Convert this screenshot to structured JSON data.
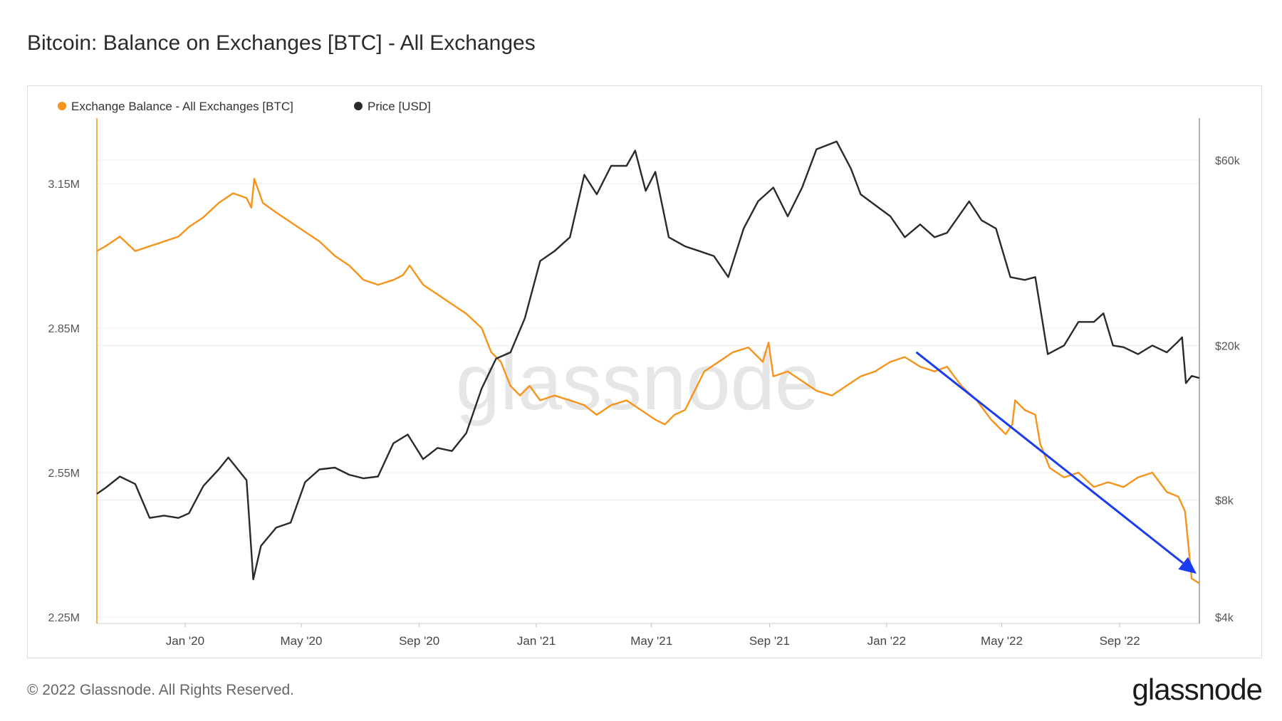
{
  "header": {
    "title": "Bitcoin: Balance on Exchanges [BTC] - All Exchanges"
  },
  "footer": {
    "copyright": "© 2022 Glassnode. All Rights Reserved.",
    "brand": "glassnode",
    "watermark": "glassnode"
  },
  "colors": {
    "balance": "#f7931a",
    "price": "#2a2a2a",
    "arrow": "#1a3cf0",
    "grid": "#ececec"
  },
  "chart_data": {
    "type": "line",
    "title": "Bitcoin: Balance on Exchanges [BTC] - All Exchanges",
    "legend_position": "top-left",
    "grid": true,
    "x_ticks": [
      "Jan '20",
      "May '20",
      "Sep '20",
      "Jan '21",
      "May '21",
      "Sep '21",
      "Jan '22",
      "May '22",
      "Sep '22"
    ],
    "x_range": [
      "2019-10-01",
      "2022-11-23"
    ],
    "y_left": {
      "ticks": [
        "2.25M",
        "2.55M",
        "2.85M",
        "3.15M"
      ],
      "range": [
        2250000,
        3150000
      ]
    },
    "y_right": {
      "scale": "log",
      "ticks": [
        "$4k",
        "$8k",
        "$20k",
        "$60k"
      ],
      "tick_values": [
        4000,
        8000,
        20000,
        60000
      ]
    },
    "series": [
      {
        "name": "Exchange Balance - All Exchanges [BTC]",
        "axis": "left",
        "color": "#f7931a",
        "points": [
          [
            "2019-10-01",
            3010000
          ],
          [
            "2019-10-10",
            3020000
          ],
          [
            "2019-10-25",
            3040000
          ],
          [
            "2019-11-10",
            3010000
          ],
          [
            "2019-11-25",
            3020000
          ],
          [
            "2019-12-10",
            3030000
          ],
          [
            "2019-12-25",
            3040000
          ],
          [
            "2020-01-05",
            3060000
          ],
          [
            "2020-01-20",
            3080000
          ],
          [
            "2020-02-05",
            3110000
          ],
          [
            "2020-02-20",
            3130000
          ],
          [
            "2020-03-05",
            3120000
          ],
          [
            "2020-03-10",
            3100000
          ],
          [
            "2020-03-13",
            3160000
          ],
          [
            "2020-03-22",
            3110000
          ],
          [
            "2020-04-05",
            3090000
          ],
          [
            "2020-04-20",
            3070000
          ],
          [
            "2020-05-05",
            3050000
          ],
          [
            "2020-05-20",
            3030000
          ],
          [
            "2020-06-05",
            3000000
          ],
          [
            "2020-06-20",
            2980000
          ],
          [
            "2020-07-05",
            2950000
          ],
          [
            "2020-07-20",
            2940000
          ],
          [
            "2020-08-05",
            2950000
          ],
          [
            "2020-08-15",
            2960000
          ],
          [
            "2020-08-22",
            2980000
          ],
          [
            "2020-09-05",
            2940000
          ],
          [
            "2020-09-20",
            2920000
          ],
          [
            "2020-10-05",
            2900000
          ],
          [
            "2020-10-20",
            2880000
          ],
          [
            "2020-11-05",
            2850000
          ],
          [
            "2020-11-15",
            2800000
          ],
          [
            "2020-11-25",
            2780000
          ],
          [
            "2020-12-05",
            2730000
          ],
          [
            "2020-12-15",
            2710000
          ],
          [
            "2020-12-25",
            2730000
          ],
          [
            "2021-01-05",
            2700000
          ],
          [
            "2021-01-20",
            2710000
          ],
          [
            "2021-02-05",
            2700000
          ],
          [
            "2021-02-20",
            2690000
          ],
          [
            "2021-03-05",
            2670000
          ],
          [
            "2021-03-20",
            2690000
          ],
          [
            "2021-04-05",
            2700000
          ],
          [
            "2021-04-20",
            2680000
          ],
          [
            "2021-05-05",
            2660000
          ],
          [
            "2021-05-15",
            2650000
          ],
          [
            "2021-05-25",
            2670000
          ],
          [
            "2021-06-05",
            2680000
          ],
          [
            "2021-06-15",
            2720000
          ],
          [
            "2021-06-25",
            2760000
          ],
          [
            "2021-07-10",
            2780000
          ],
          [
            "2021-07-25",
            2800000
          ],
          [
            "2021-08-10",
            2810000
          ],
          [
            "2021-08-25",
            2780000
          ],
          [
            "2021-08-31",
            2820000
          ],
          [
            "2021-09-05",
            2750000
          ],
          [
            "2021-09-20",
            2760000
          ],
          [
            "2021-10-05",
            2740000
          ],
          [
            "2021-10-20",
            2720000
          ],
          [
            "2021-11-05",
            2710000
          ],
          [
            "2021-11-20",
            2730000
          ],
          [
            "2021-12-05",
            2750000
          ],
          [
            "2021-12-20",
            2760000
          ],
          [
            "2022-01-05",
            2780000
          ],
          [
            "2022-01-20",
            2790000
          ],
          [
            "2022-02-05",
            2770000
          ],
          [
            "2022-02-20",
            2760000
          ],
          [
            "2022-03-05",
            2770000
          ],
          [
            "2022-03-20",
            2730000
          ],
          [
            "2022-04-05",
            2700000
          ],
          [
            "2022-04-20",
            2660000
          ],
          [
            "2022-05-05",
            2630000
          ],
          [
            "2022-05-12",
            2650000
          ],
          [
            "2022-05-15",
            2700000
          ],
          [
            "2022-05-25",
            2680000
          ],
          [
            "2022-06-05",
            2670000
          ],
          [
            "2022-06-10",
            2610000
          ],
          [
            "2022-06-20",
            2560000
          ],
          [
            "2022-07-05",
            2540000
          ],
          [
            "2022-07-20",
            2550000
          ],
          [
            "2022-08-05",
            2520000
          ],
          [
            "2022-08-20",
            2530000
          ],
          [
            "2022-09-05",
            2520000
          ],
          [
            "2022-09-20",
            2540000
          ],
          [
            "2022-10-05",
            2550000
          ],
          [
            "2022-10-20",
            2510000
          ],
          [
            "2022-11-01",
            2500000
          ],
          [
            "2022-11-08",
            2470000
          ],
          [
            "2022-11-15",
            2330000
          ],
          [
            "2022-11-23",
            2320000
          ]
        ]
      },
      {
        "name": "Price [USD]",
        "axis": "right",
        "color": "#2a2a2a",
        "points": [
          [
            "2019-10-01",
            8300
          ],
          [
            "2019-10-10",
            8600
          ],
          [
            "2019-10-25",
            9200
          ],
          [
            "2019-11-10",
            8800
          ],
          [
            "2019-11-25",
            7200
          ],
          [
            "2019-12-10",
            7300
          ],
          [
            "2019-12-25",
            7200
          ],
          [
            "2020-01-05",
            7400
          ],
          [
            "2020-01-20",
            8700
          ],
          [
            "2020-02-05",
            9600
          ],
          [
            "2020-02-15",
            10300
          ],
          [
            "2020-02-25",
            9600
          ],
          [
            "2020-03-05",
            9000
          ],
          [
            "2020-03-12",
            5000
          ],
          [
            "2020-03-20",
            6100
          ],
          [
            "2020-04-05",
            6800
          ],
          [
            "2020-04-20",
            7000
          ],
          [
            "2020-05-05",
            8900
          ],
          [
            "2020-05-20",
            9600
          ],
          [
            "2020-06-05",
            9700
          ],
          [
            "2020-06-20",
            9300
          ],
          [
            "2020-07-05",
            9100
          ],
          [
            "2020-07-20",
            9200
          ],
          [
            "2020-08-05",
            11200
          ],
          [
            "2020-08-20",
            11800
          ],
          [
            "2020-09-05",
            10200
          ],
          [
            "2020-09-20",
            10900
          ],
          [
            "2020-10-05",
            10700
          ],
          [
            "2020-10-20",
            11900
          ],
          [
            "2020-11-05",
            15500
          ],
          [
            "2020-11-20",
            18500
          ],
          [
            "2020-12-05",
            19200
          ],
          [
            "2020-12-20",
            23500
          ],
          [
            "2021-01-05",
            33000
          ],
          [
            "2021-01-20",
            35000
          ],
          [
            "2021-02-05",
            38000
          ],
          [
            "2021-02-20",
            55000
          ],
          [
            "2021-03-05",
            49000
          ],
          [
            "2021-03-20",
            58000
          ],
          [
            "2021-04-05",
            58000
          ],
          [
            "2021-04-14",
            63500
          ],
          [
            "2021-04-25",
            50000
          ],
          [
            "2021-05-05",
            56000
          ],
          [
            "2021-05-19",
            38000
          ],
          [
            "2021-06-05",
            36000
          ],
          [
            "2021-06-20",
            35000
          ],
          [
            "2021-07-05",
            34000
          ],
          [
            "2021-07-20",
            30000
          ],
          [
            "2021-08-05",
            40000
          ],
          [
            "2021-08-20",
            47000
          ],
          [
            "2021-09-05",
            51000
          ],
          [
            "2021-09-20",
            43000
          ],
          [
            "2021-10-05",
            51000
          ],
          [
            "2021-10-20",
            64000
          ],
          [
            "2021-11-10",
            67000
          ],
          [
            "2021-11-25",
            57000
          ],
          [
            "2021-12-05",
            49000
          ],
          [
            "2021-12-20",
            46000
          ],
          [
            "2022-01-05",
            43000
          ],
          [
            "2022-01-20",
            38000
          ],
          [
            "2022-02-05",
            41000
          ],
          [
            "2022-02-20",
            38000
          ],
          [
            "2022-03-05",
            39000
          ],
          [
            "2022-03-28",
            47000
          ],
          [
            "2022-04-10",
            42000
          ],
          [
            "2022-04-25",
            40000
          ],
          [
            "2022-05-10",
            30000
          ],
          [
            "2022-05-25",
            29500
          ],
          [
            "2022-06-05",
            30000
          ],
          [
            "2022-06-18",
            19000
          ],
          [
            "2022-07-05",
            20000
          ],
          [
            "2022-07-20",
            23000
          ],
          [
            "2022-08-05",
            23000
          ],
          [
            "2022-08-15",
            24200
          ],
          [
            "2022-08-25",
            20000
          ],
          [
            "2022-09-05",
            19800
          ],
          [
            "2022-09-20",
            19000
          ],
          [
            "2022-10-05",
            20000
          ],
          [
            "2022-10-20",
            19200
          ],
          [
            "2022-11-01",
            20500
          ],
          [
            "2022-11-05",
            21000
          ],
          [
            "2022-11-09",
            16000
          ],
          [
            "2022-11-15",
            16700
          ],
          [
            "2022-11-23",
            16500
          ]
        ]
      }
    ],
    "annotations": [
      {
        "type": "arrow",
        "from": [
          "2022-02-01",
          2800000
        ],
        "to": [
          "2022-11-20",
          2340000
        ]
      }
    ]
  }
}
